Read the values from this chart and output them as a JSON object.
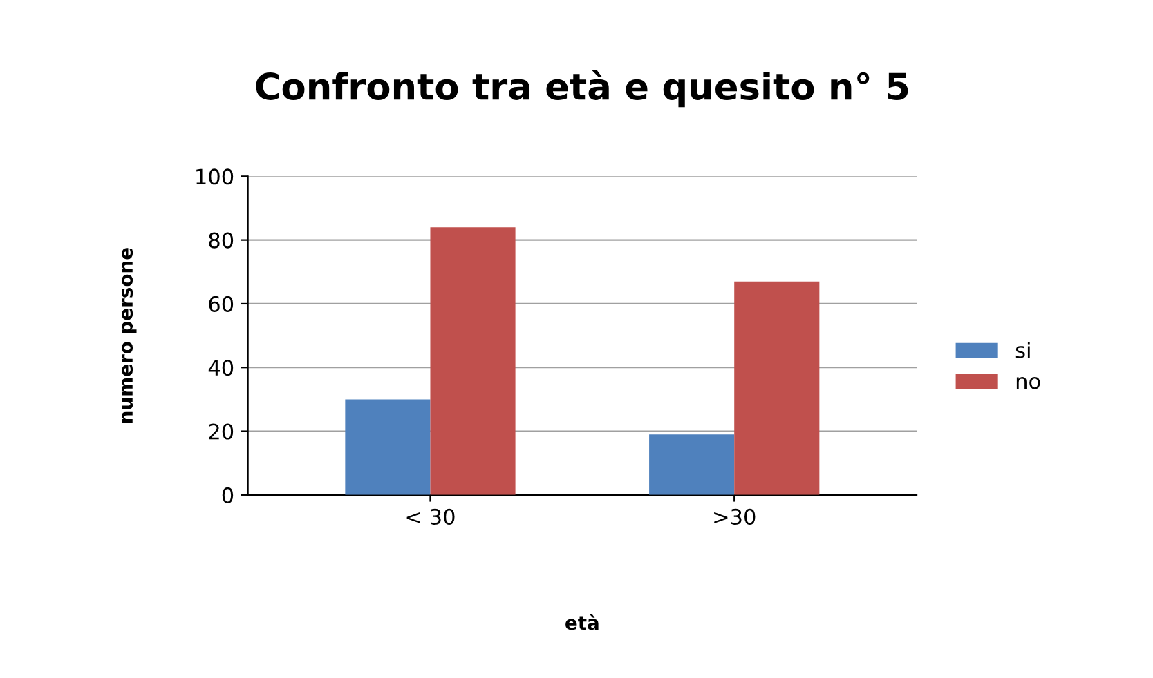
{
  "chart_data": {
    "type": "bar",
    "title": "Confronto tra età e quesito n° 5",
    "xlabel": "età",
    "ylabel": "numero persone",
    "categories": [
      "< 30",
      ">30"
    ],
    "series": [
      {
        "name": "si",
        "color": "#4f81bd",
        "values": [
          30,
          19
        ]
      },
      {
        "name": "no",
        "color": "#c0504d",
        "values": [
          84,
          67
        ]
      }
    ],
    "ylim": [
      0,
      100
    ],
    "yticks": [
      0,
      20,
      40,
      60,
      80,
      100
    ],
    "grid": "y",
    "legend": "right"
  }
}
